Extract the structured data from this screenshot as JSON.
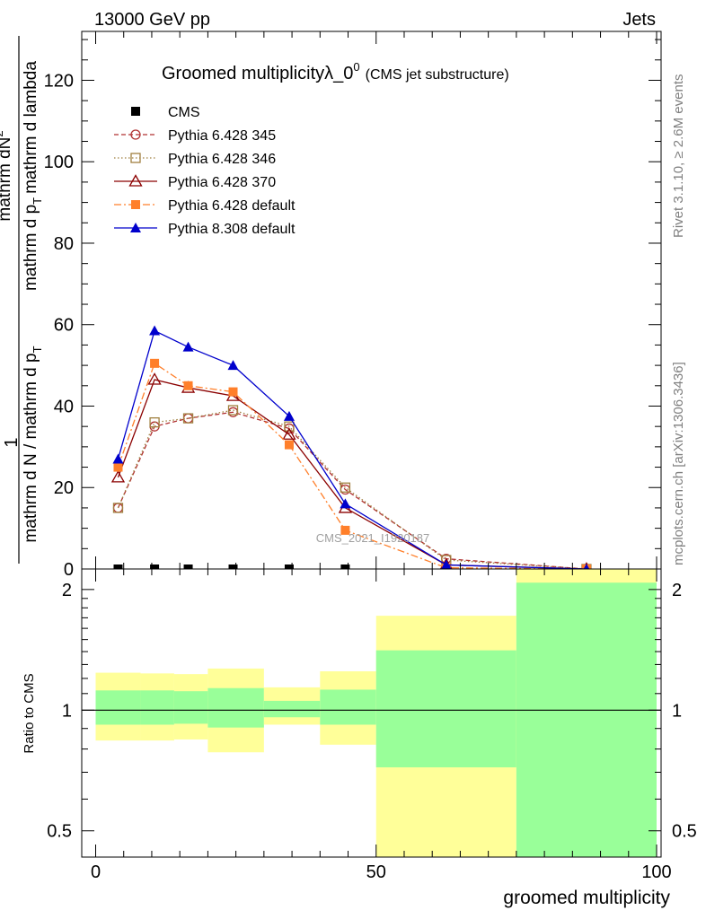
{
  "header": {
    "left": "13000 GeV pp",
    "right": "Jets"
  },
  "side_labels": {
    "rivet": "Rivet 3.1.10, ≥ 2.6M events",
    "mcplots": "mcplots.cern.ch [arXiv:1306.3436]"
  },
  "chart_data": [
    {
      "type": "line",
      "title_main": "Groomed multiplicityλ_0",
      "title_sup": "0",
      "title_sub": "(CMS jet substructure)",
      "ylabel_top": "1",
      "ylabel_numerator": "mathrm dN",
      "ylabel_numerator_sup": "2",
      "ylabel_denominator_a": "mathrm d N / mathrm d p",
      "ylabel_denominator_b": "mathrm d p",
      "ylabel_denominator_c": "mathrm d lambda",
      "ylabel_sub": "T",
      "watermark": "CMS_2021_I1920187",
      "xlim": [
        -4,
        100
      ],
      "ylim": [
        0,
        132
      ],
      "y_ticks": [
        0,
        20,
        40,
        60,
        80,
        100,
        120
      ],
      "y_tick_labels": [
        "0",
        "20",
        "40",
        "60",
        "80",
        "100",
        "120"
      ],
      "x": [
        4,
        10.5,
        16.5,
        24.5,
        34.5,
        44.5,
        62.5,
        87.5
      ],
      "x_edges": [
        0,
        8,
        14,
        20,
        30,
        40,
        50,
        75,
        100
      ],
      "series": [
        {
          "name": "CMS",
          "color": "#000000",
          "marker": "square-filled",
          "line": "none",
          "values": [
            0,
            0,
            0,
            0,
            0,
            0,
            null,
            null
          ]
        },
        {
          "name": "Pythia 6.428 345",
          "color": "#b03030",
          "marker": "circle-open",
          "line": "dashed",
          "values": [
            15,
            35,
            37,
            38.5,
            34.5,
            19.5,
            2.5,
            0
          ]
        },
        {
          "name": "Pythia 6.428 346",
          "color": "#a08040",
          "marker": "square-open",
          "line": "dotted",
          "values": [
            15,
            36,
            37,
            39,
            35,
            20,
            2.2,
            0
          ]
        },
        {
          "name": "Pythia 6.428 370",
          "color": "#8b0000",
          "marker": "triangle-open",
          "line": "solid",
          "values": [
            22.5,
            46.5,
            44.5,
            42.5,
            33,
            15,
            1,
            0
          ]
        },
        {
          "name": "Pythia 6.428 default",
          "color": "#ff7f2a",
          "marker": "square-filled",
          "line": "dashdot",
          "values": [
            25,
            50.5,
            45,
            43.5,
            30.5,
            9.5,
            0.3,
            0
          ]
        },
        {
          "name": "Pythia 8.308 default",
          "color": "#0000cc",
          "marker": "triangle-filled",
          "line": "solid",
          "values": [
            27,
            58.5,
            54.5,
            50,
            37.5,
            16,
            1,
            0
          ]
        }
      ]
    },
    {
      "type": "area",
      "ylabel": "Ratio to CMS",
      "xlabel": "groomed multiplicity",
      "log_scale_y": true,
      "ylim": [
        0.43,
        2.25
      ],
      "y_tick_labels": [
        "0.5",
        "1",
        "2"
      ],
      "y_tick_values": [
        0.5,
        1,
        2
      ],
      "x_ticks": [
        0,
        50,
        100
      ],
      "x_tick_labels": [
        "0",
        "50",
        "100"
      ],
      "reference_line": 1,
      "colors": {
        "inner_band": "#99ff99",
        "outer_band": "#ffff99"
      },
      "bins": [
        {
          "x0": 0,
          "x1": 8,
          "inner": [
            0.92,
            1.12
          ],
          "outer": [
            0.84,
            1.24
          ]
        },
        {
          "x0": 8,
          "x1": 14,
          "inner": [
            0.92,
            1.12
          ],
          "outer": [
            0.84,
            1.235
          ]
        },
        {
          "x0": 14,
          "x1": 20,
          "inner": [
            0.925,
            1.115
          ],
          "outer": [
            0.845,
            1.23
          ]
        },
        {
          "x0": 20,
          "x1": 30,
          "inner": [
            0.905,
            1.135
          ],
          "outer": [
            0.785,
            1.27
          ]
        },
        {
          "x0": 30,
          "x1": 40,
          "inner": [
            0.96,
            1.055
          ],
          "outer": [
            0.92,
            1.14
          ]
        },
        {
          "x0": 40,
          "x1": 50,
          "inner": [
            0.92,
            1.125
          ],
          "outer": [
            0.82,
            1.25
          ]
        },
        {
          "x0": 50,
          "x1": 75,
          "inner": [
            0.72,
            1.41
          ],
          "outer": [
            0.43,
            1.72
          ]
        },
        {
          "x0": 75,
          "x1": 100,
          "inner": [
            0.43,
            2.08
          ],
          "outer": [
            0.43,
            2.25
          ]
        }
      ]
    }
  ]
}
